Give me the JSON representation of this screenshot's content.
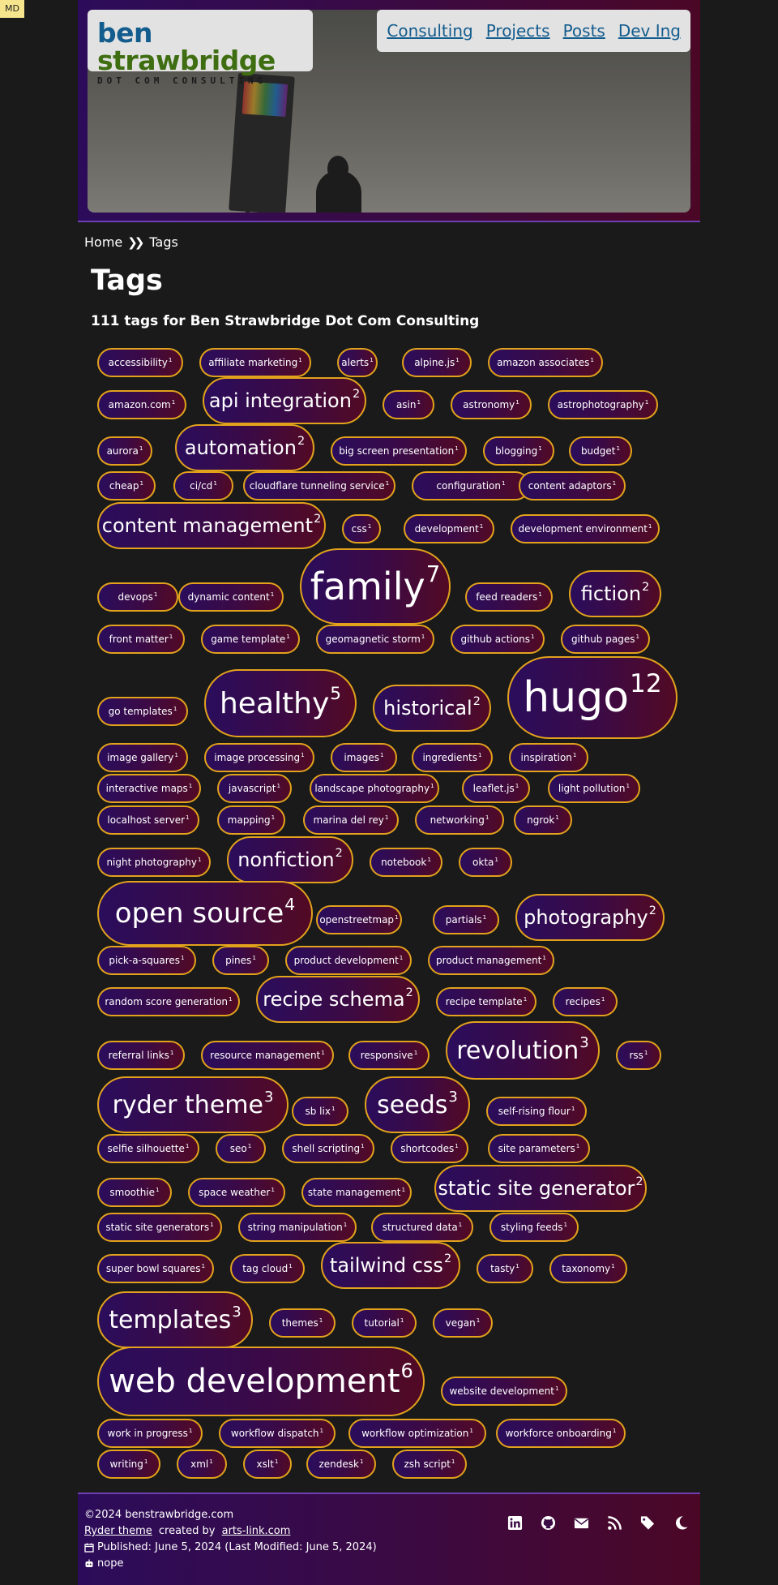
{
  "badge": "MD",
  "site": {
    "logo_first": "ben",
    "logo_second": "strawbridge",
    "logo_sub": "DOT COM CONSULTING"
  },
  "nav": [
    {
      "label": "Consulting"
    },
    {
      "label": "Projects"
    },
    {
      "label": "Posts"
    },
    {
      "label": "Dev Ing"
    }
  ],
  "breadcrumb": {
    "home": "Home",
    "current": "Tags"
  },
  "page": {
    "title": "Tags",
    "subtitle": "111 tags for Ben Strawbridge Dot Com Consulting"
  },
  "tags": [
    {
      "name": "accessibility",
      "count": "1"
    },
    {
      "name": "affiliate marketing",
      "count": "1"
    },
    {
      "name": "alerts",
      "count": "1"
    },
    {
      "name": "alpine.js",
      "count": "1"
    },
    {
      "name": "amazon associates",
      "count": "1"
    },
    {
      "name": "amazon.com",
      "count": "1"
    },
    {
      "name": "api integration",
      "count": "2"
    },
    {
      "name": "asin",
      "count": "1"
    },
    {
      "name": "astronomy",
      "count": "1"
    },
    {
      "name": "astrophotography",
      "count": "1"
    },
    {
      "name": "aurora",
      "count": "1"
    },
    {
      "name": "automation",
      "count": "2"
    },
    {
      "name": "big screen presentation",
      "count": "1"
    },
    {
      "name": "blogging",
      "count": "1"
    },
    {
      "name": "budget",
      "count": "1"
    },
    {
      "name": "cheap",
      "count": "1"
    },
    {
      "name": "ci/cd",
      "count": "1"
    },
    {
      "name": "cloudflare tunneling service",
      "count": "1"
    },
    {
      "name": "configuration",
      "count": "1"
    },
    {
      "name": "content adaptors",
      "count": "1"
    },
    {
      "name": "content management",
      "count": "2"
    },
    {
      "name": "css",
      "count": "1"
    },
    {
      "name": "development",
      "count": "1"
    },
    {
      "name": "development environment",
      "count": "1"
    },
    {
      "name": "devops",
      "count": "1"
    },
    {
      "name": "dynamic content",
      "count": "1"
    },
    {
      "name": "family",
      "count": "7"
    },
    {
      "name": "feed readers",
      "count": "1"
    },
    {
      "name": "fiction",
      "count": "2"
    },
    {
      "name": "front matter",
      "count": "1"
    },
    {
      "name": "game template",
      "count": "1"
    },
    {
      "name": "geomagnetic storm",
      "count": "1"
    },
    {
      "name": "github actions",
      "count": "1"
    },
    {
      "name": "github pages",
      "count": "1"
    },
    {
      "name": "go templates",
      "count": "1"
    },
    {
      "name": "healthy",
      "count": "5"
    },
    {
      "name": "historical",
      "count": "2"
    },
    {
      "name": "hugo",
      "count": "12"
    },
    {
      "name": "image gallery",
      "count": "1"
    },
    {
      "name": "image processing",
      "count": "1"
    },
    {
      "name": "images",
      "count": "1"
    },
    {
      "name": "ingredients",
      "count": "1"
    },
    {
      "name": "inspiration",
      "count": "1"
    },
    {
      "name": "interactive maps",
      "count": "1"
    },
    {
      "name": "javascript",
      "count": "1"
    },
    {
      "name": "landscape photography",
      "count": "1"
    },
    {
      "name": "leaflet.js",
      "count": "1"
    },
    {
      "name": "light pollution",
      "count": "1"
    },
    {
      "name": "localhost server",
      "count": "1"
    },
    {
      "name": "mapping",
      "count": "1"
    },
    {
      "name": "marina del rey",
      "count": "1"
    },
    {
      "name": "networking",
      "count": "1"
    },
    {
      "name": "ngrok",
      "count": "1"
    },
    {
      "name": "night photography",
      "count": "1"
    },
    {
      "name": "nonfiction",
      "count": "2"
    },
    {
      "name": "notebook",
      "count": "1"
    },
    {
      "name": "okta",
      "count": "1"
    },
    {
      "name": "open source",
      "count": "4"
    },
    {
      "name": "openstreetmap",
      "count": "1"
    },
    {
      "name": "partials",
      "count": "1"
    },
    {
      "name": "photography",
      "count": "2"
    },
    {
      "name": "pick-a-squares",
      "count": "1"
    },
    {
      "name": "pines",
      "count": "1"
    },
    {
      "name": "product development",
      "count": "1"
    },
    {
      "name": "product management",
      "count": "1"
    },
    {
      "name": "random score generation",
      "count": "1"
    },
    {
      "name": "recipe schema",
      "count": "2"
    },
    {
      "name": "recipe template",
      "count": "1"
    },
    {
      "name": "recipes",
      "count": "1"
    },
    {
      "name": "referral links",
      "count": "1"
    },
    {
      "name": "resource management",
      "count": "1"
    },
    {
      "name": "responsive",
      "count": "1"
    },
    {
      "name": "revolution",
      "count": "3"
    },
    {
      "name": "rss",
      "count": "1"
    },
    {
      "name": "ryder theme",
      "count": "3"
    },
    {
      "name": "sb lix",
      "count": "1"
    },
    {
      "name": "seeds",
      "count": "3"
    },
    {
      "name": "self-rising flour",
      "count": "1"
    },
    {
      "name": "selfie silhouette",
      "count": "1"
    },
    {
      "name": "seo",
      "count": "1"
    },
    {
      "name": "shell scripting",
      "count": "1"
    },
    {
      "name": "shortcodes",
      "count": "1"
    },
    {
      "name": "site parameters",
      "count": "1"
    },
    {
      "name": "smoothie",
      "count": "1"
    },
    {
      "name": "space weather",
      "count": "1"
    },
    {
      "name": "state management",
      "count": "1"
    },
    {
      "name": "static site generator",
      "count": "2"
    },
    {
      "name": "static site generators",
      "count": "1"
    },
    {
      "name": "string manipulation",
      "count": "1"
    },
    {
      "name": "structured data",
      "count": "1"
    },
    {
      "name": "styling feeds",
      "count": "1"
    },
    {
      "name": "super bowl squares",
      "count": "1"
    },
    {
      "name": "tag cloud",
      "count": "1"
    },
    {
      "name": "tailwind css",
      "count": "2"
    },
    {
      "name": "tasty",
      "count": "1"
    },
    {
      "name": "taxonomy",
      "count": "1"
    },
    {
      "name": "templates",
      "count": "3"
    },
    {
      "name": "themes",
      "count": "1"
    },
    {
      "name": "tutorial",
      "count": "1"
    },
    {
      "name": "vegan",
      "count": "1"
    },
    {
      "name": "web development",
      "count": "6"
    },
    {
      "name": "website development",
      "count": "1"
    },
    {
      "name": "work in progress",
      "count": "1"
    },
    {
      "name": "workflow dispatch",
      "count": "1"
    },
    {
      "name": "workflow optimization",
      "count": "1"
    },
    {
      "name": "workforce onboarding",
      "count": "1"
    },
    {
      "name": "writing",
      "count": "1"
    },
    {
      "name": "xml",
      "count": "1"
    },
    {
      "name": "xslt",
      "count": "1"
    },
    {
      "name": "zendesk",
      "count": "1"
    },
    {
      "name": "zsh script",
      "count": "1"
    }
  ],
  "footer": {
    "copyright": "©2024 benstrawbridge.com",
    "theme_link": "Ryder theme",
    "created_by": " created by ",
    "author_link": "arts-link.com",
    "published": "Published: June 5, 2024 (Last Modified: June 5, 2024)",
    "extra": "nope",
    "icons": [
      "linkedin-icon",
      "github-icon",
      "email-icon",
      "rss-icon",
      "tags-icon",
      "dark-mode-icon"
    ]
  }
}
